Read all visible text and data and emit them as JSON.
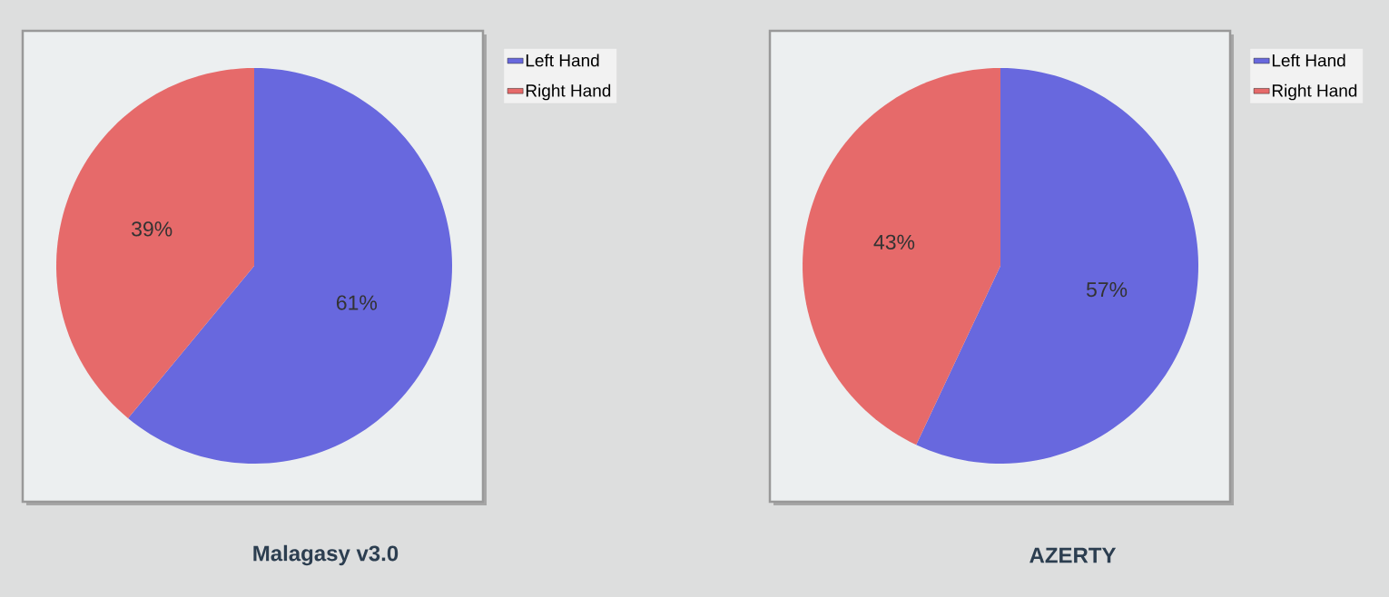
{
  "chart_data": [
    {
      "type": "pie",
      "title": "Malagasy v3.0",
      "categories": [
        "Left Hand",
        "Right Hand"
      ],
      "values": [
        61,
        39
      ],
      "value_labels": [
        "61%",
        "39%"
      ],
      "colors": [
        "#6868de",
        "#e66a6a"
      ],
      "legend": "right"
    },
    {
      "type": "pie",
      "title": "AZERTY",
      "categories": [
        "Left Hand",
        "Right Hand"
      ],
      "values": [
        57,
        43
      ],
      "value_labels": [
        "57%",
        "43%"
      ],
      "colors": [
        "#6868de",
        "#e66a6a"
      ],
      "legend": "right"
    }
  ]
}
